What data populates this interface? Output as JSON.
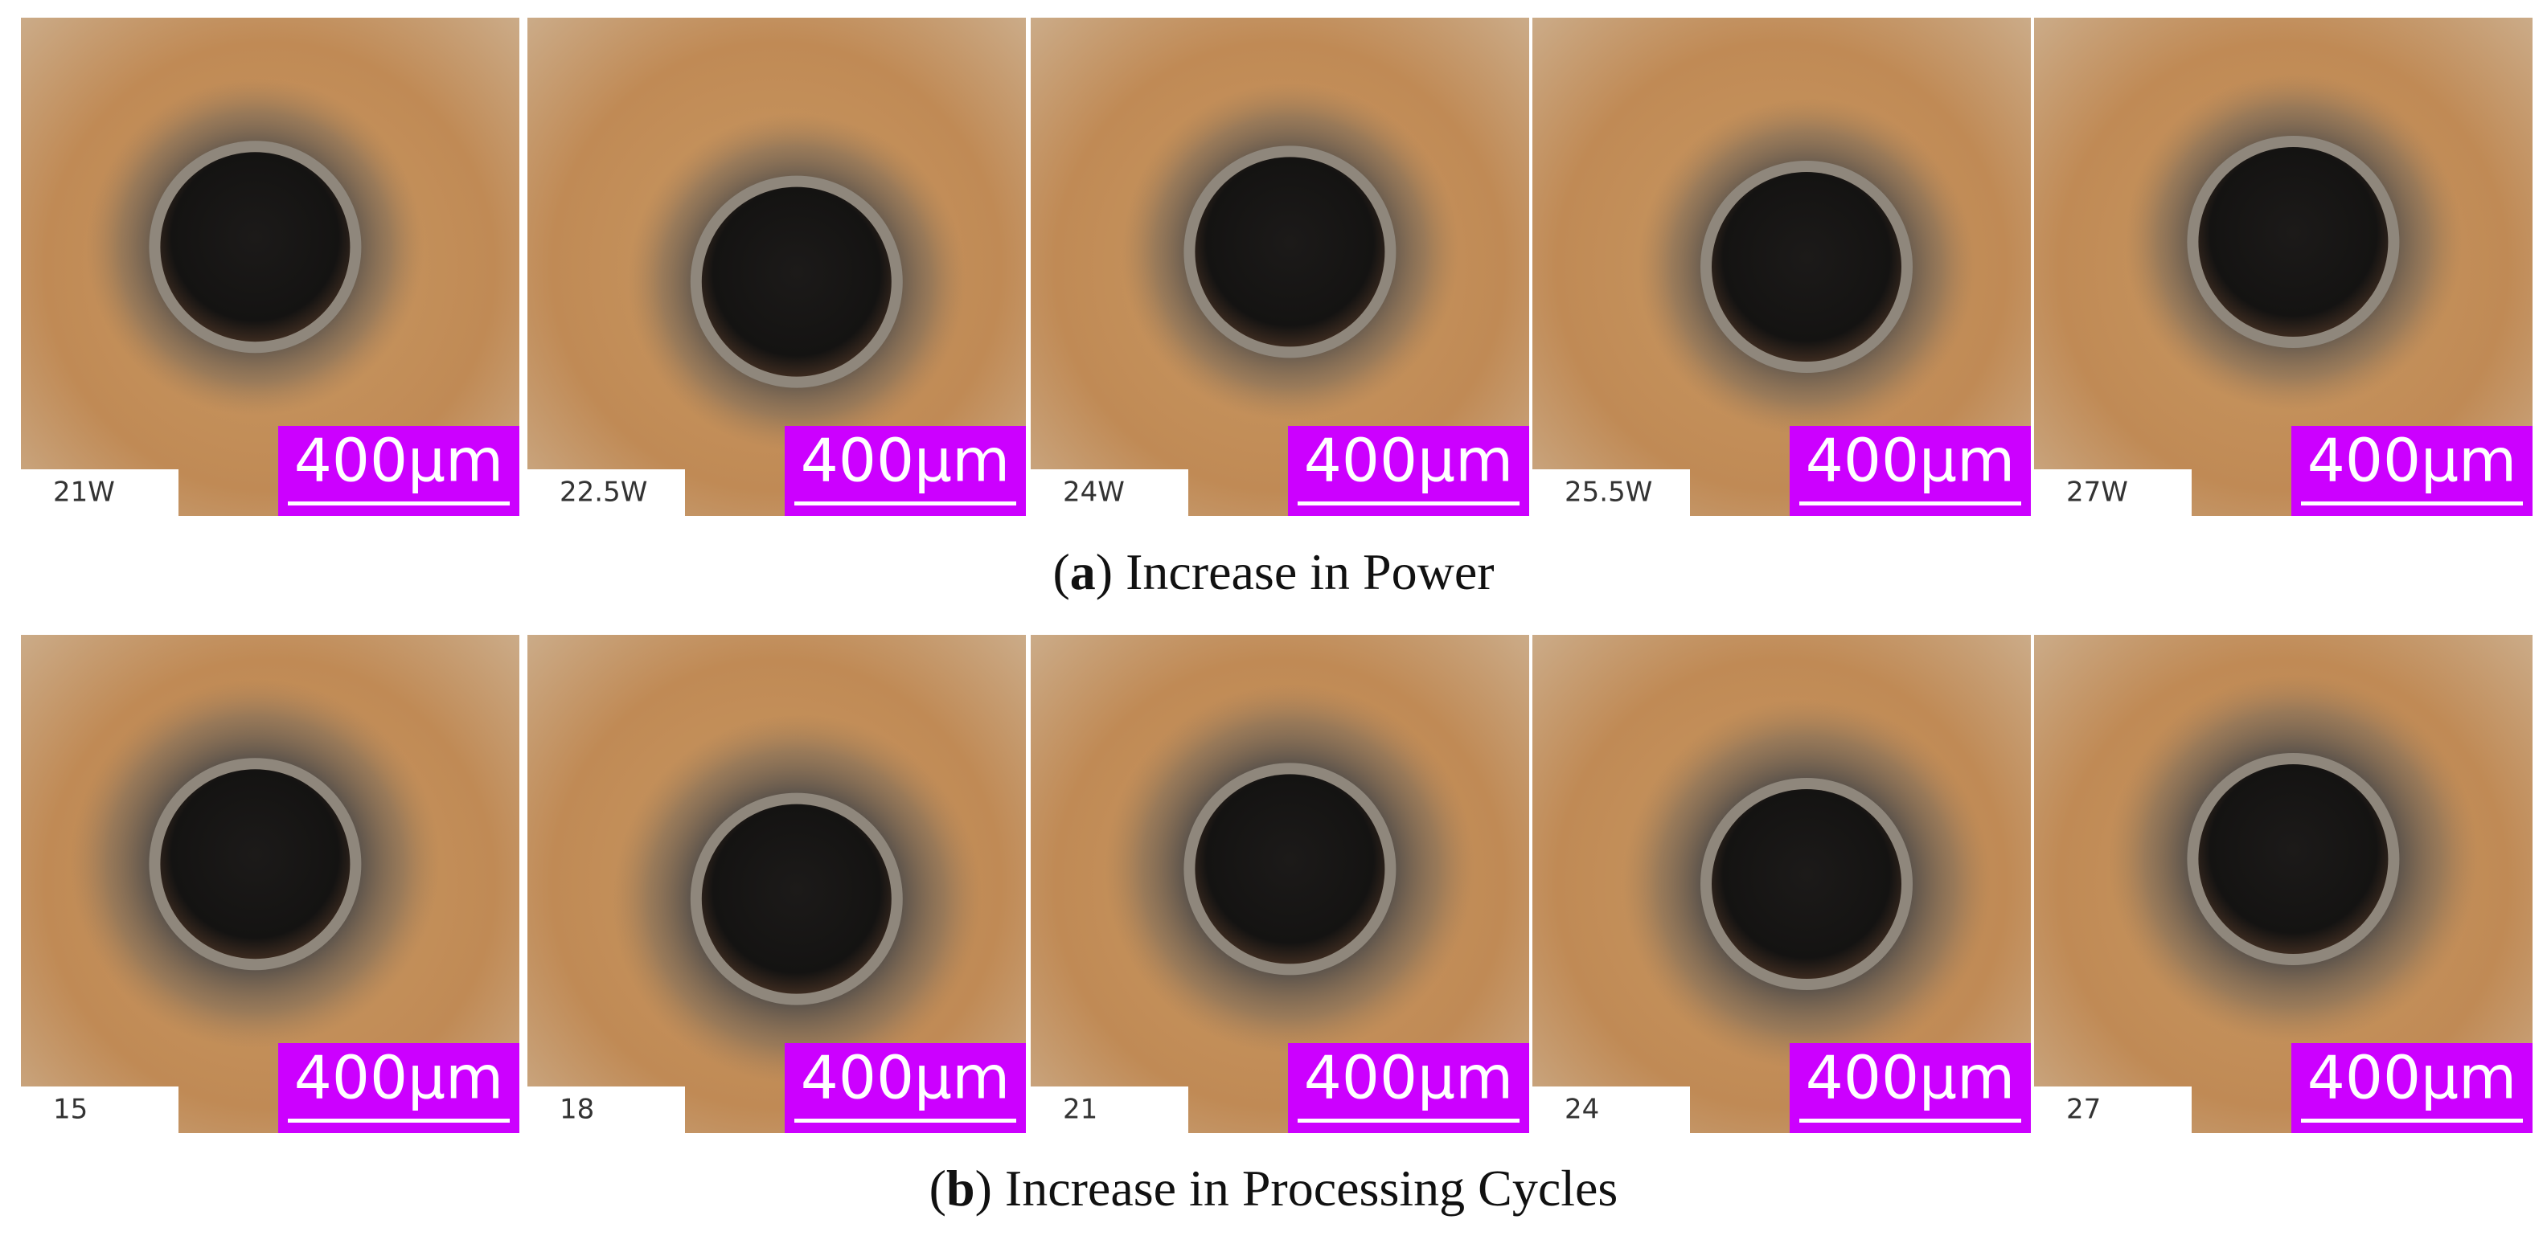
{
  "rows": [
    {
      "caption": {
        "prefix": "(",
        "letter": "a",
        "suffix": ") Increase in Power"
      },
      "panels": [
        {
          "label": "21W",
          "scale": "400μm"
        },
        {
          "label": "22.5W",
          "scale": "400μm"
        },
        {
          "label": "24W",
          "scale": "400μm"
        },
        {
          "label": "25.5W",
          "scale": "400μm"
        },
        {
          "label": "27W",
          "scale": "400μm"
        }
      ]
    },
    {
      "caption": {
        "prefix": "(",
        "letter": "b",
        "suffix": ") Increase in Processing Cycles"
      },
      "panels": [
        {
          "label": "15",
          "scale": "400μm"
        },
        {
          "label": "18",
          "scale": "400μm"
        },
        {
          "label": "21",
          "scale": "400μm"
        },
        {
          "label": "24",
          "scale": "400μm"
        },
        {
          "label": "27",
          "scale": "400μm"
        }
      ]
    }
  ]
}
